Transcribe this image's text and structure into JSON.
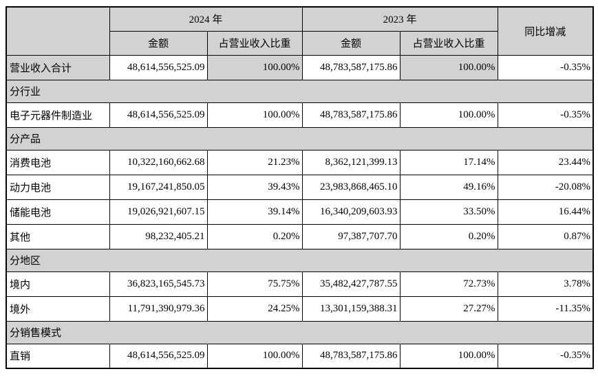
{
  "table": {
    "header": {
      "year_2024": "2024 年",
      "year_2023": "2023 年",
      "yoy": "同比增减",
      "amount": "金额",
      "ratio": "占营业收入比重"
    },
    "rows": [
      {
        "type": "data",
        "shaded": true,
        "label": "营业收入合计",
        "a24": "48,614,556,525.09",
        "r24": "100.00%",
        "a23": "48,783,587,175.86",
        "r23": "100.00%",
        "yoy": "-0.35%"
      },
      {
        "type": "section",
        "label": "分行业"
      },
      {
        "type": "data",
        "label": "电子元器件制造业",
        "a24": "48,614,556,525.09",
        "r24": "100.00%",
        "a23": "48,783,587,175.86",
        "r23": "100.00%",
        "yoy": "-0.35%"
      },
      {
        "type": "section",
        "label": "分产品"
      },
      {
        "type": "data",
        "label": "消费电池",
        "a24": "10,322,160,662.68",
        "r24": "21.23%",
        "a23": "8,362,121,399.13",
        "r23": "17.14%",
        "yoy": "23.44%"
      },
      {
        "type": "data",
        "label": "动力电池",
        "a24": "19,167,241,850.05",
        "r24": "39.43%",
        "a23": "23,983,868,465.10",
        "r23": "49.16%",
        "yoy": "-20.08%"
      },
      {
        "type": "data",
        "label": "储能电池",
        "a24": "19,026,921,607.15",
        "r24": "39.14%",
        "a23": "16,340,209,603.93",
        "r23": "33.50%",
        "yoy": "16.44%"
      },
      {
        "type": "data",
        "label": "其他",
        "a24": "98,232,405.21",
        "r24": "0.20%",
        "a23": "97,387,707.70",
        "r23": "0.20%",
        "yoy": "0.87%"
      },
      {
        "type": "section",
        "label": "分地区"
      },
      {
        "type": "data",
        "label": "境内",
        "a24": "36,823,165,545.73",
        "r24": "75.75%",
        "a23": "35,482,427,787.55",
        "r23": "72.73%",
        "yoy": "3.78%"
      },
      {
        "type": "data",
        "label": "境外",
        "a24": "11,791,390,979.36",
        "r24": "24.25%",
        "a23": "13,301,159,388.31",
        "r23": "27.27%",
        "yoy": "-11.35%"
      },
      {
        "type": "section",
        "label": "分销售模式"
      },
      {
        "type": "data",
        "label": "直销",
        "a24": "48,614,556,525.09",
        "r24": "100.00%",
        "a23": "48,783,587,175.86",
        "r23": "100.00%",
        "yoy": "-0.35%"
      }
    ],
    "colors": {
      "shading": "#d2d2d2",
      "border": "#000000",
      "text": "#000000",
      "background": "#ffffff"
    }
  }
}
